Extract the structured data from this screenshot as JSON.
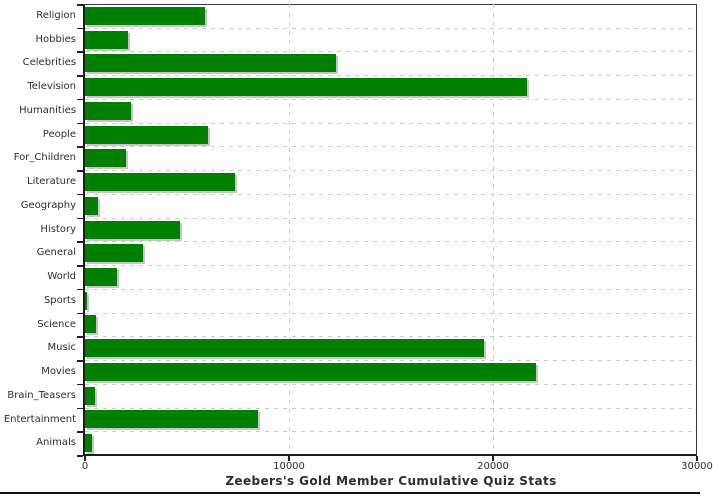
{
  "chart_data": {
    "type": "bar",
    "orientation": "horizontal",
    "title": "Zeebers's Gold Member Cumulative Quiz Stats",
    "categories": [
      "Religion",
      "Hobbies",
      "Celebrities",
      "Television",
      "Humanities",
      "People",
      "For_Children",
      "Literature",
      "Geography",
      "History",
      "General",
      "World",
      "Sports",
      "Science",
      "Music",
      "Movies",
      "Brain_Teasers",
      "Entertainment",
      "Animals"
    ],
    "values": [
      5900,
      2100,
      12300,
      21650,
      2250,
      6050,
      2000,
      7350,
      650,
      4650,
      2850,
      1550,
      100,
      550,
      19550,
      22100,
      500,
      8500,
      350
    ],
    "xlabel": "",
    "ylabel": "",
    "xlim": [
      0,
      30000
    ],
    "x_ticks": [
      0,
      10000,
      20000,
      30000
    ],
    "x_tick_labels": [
      "0",
      "10000",
      "20000",
      "30000"
    ],
    "grid": "dashed",
    "legend": "none",
    "colors": {
      "bar": "#008000",
      "bar_shadow": "#c6c6c6",
      "gridline": "#cccccc",
      "axis": "#222222",
      "text": "#2d2d2d"
    }
  }
}
